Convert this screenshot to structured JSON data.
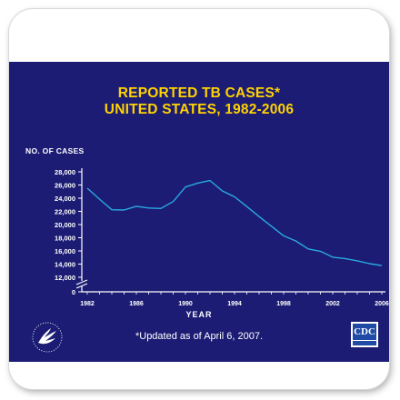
{
  "slide": {
    "title_line1": "REPORTED TB CASES*",
    "title_line2": "UNITED STATES, 1982-2006",
    "footnote": "*Updated as of April 6, 2007.",
    "logos": {
      "left": "hhs-eagle-logo",
      "right": "CDC"
    },
    "colors": {
      "background": "#1c1c74",
      "title": "#ffd200",
      "line": "#29a9e0",
      "text": "#ffffff"
    }
  },
  "chart_data": {
    "type": "line",
    "title": "REPORTED TB CASES* UNITED STATES, 1982-2006",
    "xlabel": "YEAR",
    "ylabel": "NO. OF CASES",
    "x": [
      1982,
      1983,
      1984,
      1985,
      1986,
      1987,
      1988,
      1989,
      1990,
      1991,
      1992,
      1993,
      1994,
      1995,
      1996,
      1997,
      1998,
      1999,
      2000,
      2001,
      2002,
      2003,
      2004,
      2005,
      2006
    ],
    "series": [
      {
        "values": [
          25520,
          23846,
          22255,
          22201,
          22768,
          22517,
          22436,
          23495,
          25701,
          26283,
          26673,
          25102,
          24206,
          22727,
          21210,
          19751,
          18287,
          17499,
          16309,
          15945,
          15055,
          14835,
          14499,
          14065,
          13767
        ]
      }
    ],
    "x_ticks": [
      "1982",
      "1986",
      "1990",
      "1994",
      "1998",
      "2002",
      "2006"
    ],
    "y_ticks": [
      "0",
      "12,000",
      "14,000",
      "16,000",
      "18,000",
      "20,000",
      "22,000",
      "24,000",
      "26,000",
      "28,000"
    ],
    "ylim": [
      12000,
      28000
    ],
    "axis_break": true,
    "grid": false
  }
}
